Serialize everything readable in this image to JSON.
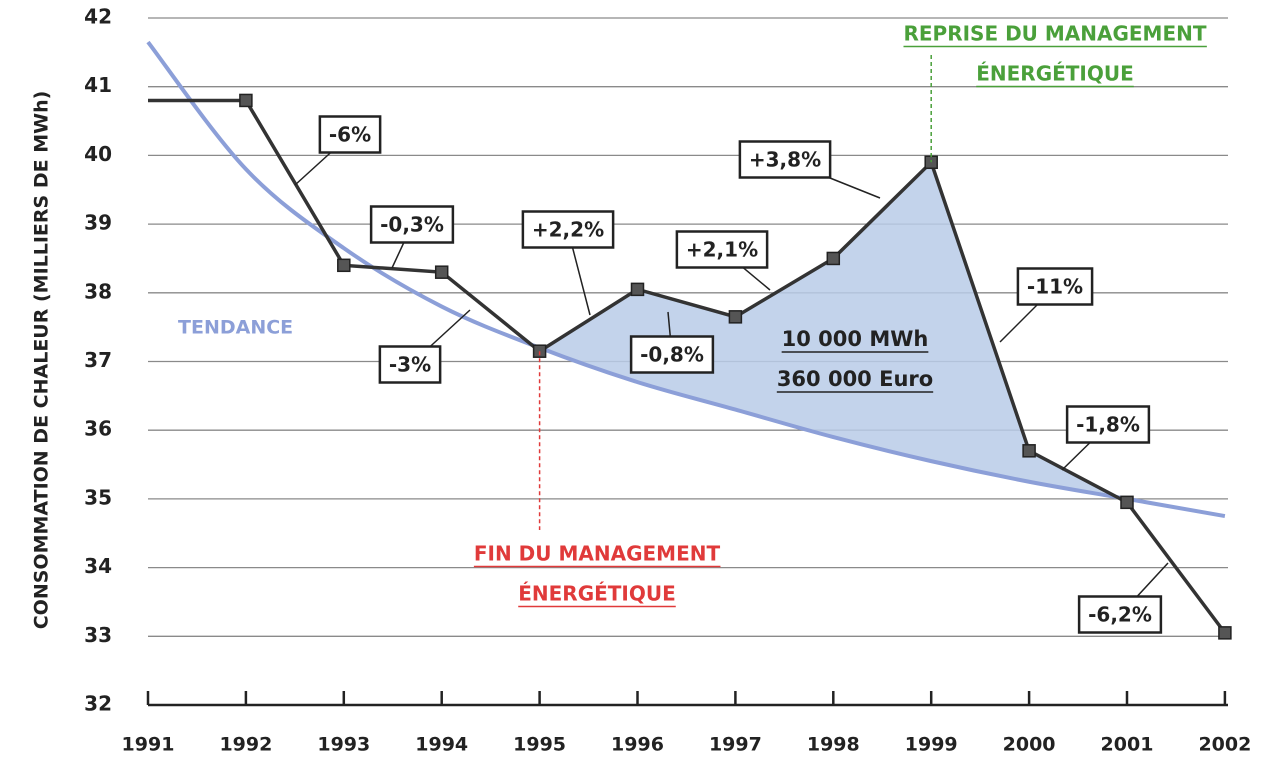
{
  "chart_data": {
    "type": "line",
    "y_label": "CONSOMMATION DE CHALEUR (MILLIERS DE MWh)",
    "categories": [
      "1991",
      "1992",
      "1993",
      "1994",
      "1995",
      "1996",
      "1997",
      "1998",
      "1999",
      "2000",
      "2001",
      "2002"
    ],
    "series": [
      {
        "name": "Consommation",
        "color": "#333333",
        "values": [
          40.8,
          40.8,
          38.4,
          38.3,
          37.15,
          38.05,
          37.65,
          38.5,
          39.9,
          35.7,
          34.95,
          33.05
        ]
      },
      {
        "name": "TENDANCE",
        "color": "#8c9fd8",
        "values": [
          41.65,
          39.8,
          38.65,
          37.8,
          37.2,
          36.7,
          36.3,
          35.9,
          35.55,
          35.25,
          35.0,
          34.75
        ]
      }
    ],
    "ylim": [
      32,
      42
    ],
    "yticks": [
      32,
      33,
      34,
      35,
      36,
      37,
      38,
      39,
      40,
      41,
      42
    ],
    "grid": true,
    "change_labels": [
      "-6%",
      "-0,3%",
      "-3%",
      "+2,2%",
      "-0,8%",
      "+2,1%",
      "+3,8%",
      "-11%",
      "-1,8%",
      "-6,2%"
    ],
    "fin_label": [
      "FIN DU MANAGEMENT",
      "ÉNERGÉTIQUE"
    ],
    "reprise_label": [
      "REPRISE DU MANAGEMENT",
      "ÉNERGÉTIQUE"
    ],
    "gain_label": [
      "10 000 MWh",
      "360 000 Euro"
    ]
  }
}
